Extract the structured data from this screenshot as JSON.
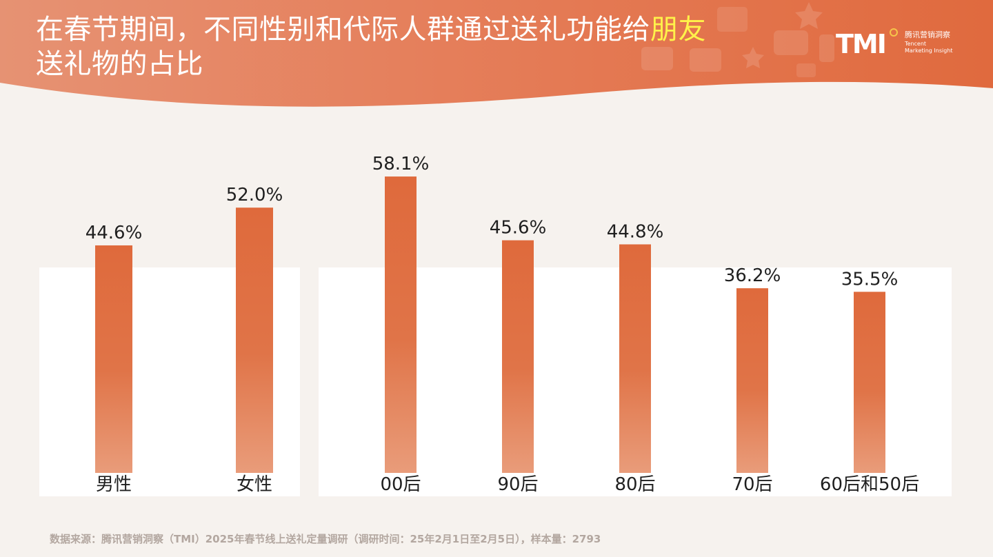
{
  "title": {
    "line1_main": "在春节期间，不同性别和代际人群通过送礼功能给",
    "line1_highlight": "朋友",
    "line2": "送礼物的占比"
  },
  "logo": {
    "mark": "TMI",
    "cn": "腾讯营销洞察",
    "en1": "Tencent",
    "en2": "Marketing Insight"
  },
  "colors": {
    "header": "#e3724a",
    "bar_top": "#df6a3c",
    "bar_bottom": "#e99c7a",
    "highlight": "#fff24a"
  },
  "chart_data": {
    "type": "bar",
    "title": "在春节期间，不同性别和代际人群通过送礼功能给朋友送礼物的占比",
    "categories": [
      "男性",
      "女性",
      "00后",
      "90后",
      "80后",
      "70后",
      "60后和50后"
    ],
    "values": [
      44.6,
      52.0,
      58.1,
      45.6,
      44.8,
      36.2,
      35.5
    ],
    "value_labels": [
      "44.6%",
      "52.0%",
      "58.1%",
      "45.6%",
      "44.8%",
      "36.2%",
      "35.5%"
    ],
    "unit": "%",
    "groups": [
      {
        "name": "gender",
        "categories": [
          "男性",
          "女性"
        ]
      },
      {
        "name": "generation",
        "categories": [
          "00后",
          "90后",
          "80后",
          "70后",
          "60后和50后"
        ]
      }
    ],
    "xlabel": "",
    "ylabel": "",
    "grid": false,
    "legend": "none"
  },
  "source": "数据来源：腾讯营销洞察（TMI）2025年春节线上送礼定量调研（调研时间：25年2月1日至2月5日），样本量：2793"
}
